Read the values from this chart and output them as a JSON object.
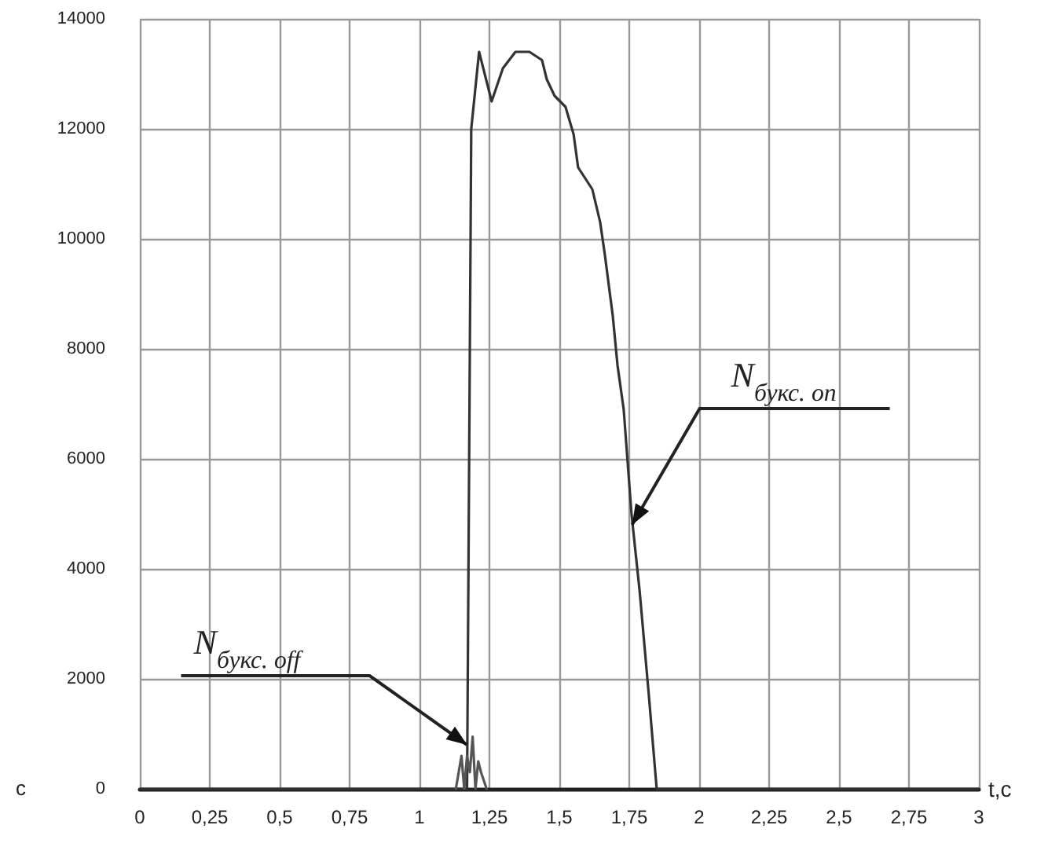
{
  "chart_data": {
    "type": "line",
    "xlabel": "t,c",
    "x": [
      0,
      1.17,
      1.185,
      1.213,
      1.258,
      1.298,
      1.343,
      1.393,
      1.438,
      1.455,
      1.483,
      1.522,
      1.551,
      1.567,
      1.618,
      1.646,
      1.663,
      1.691,
      1.708,
      1.73,
      1.758,
      1.787,
      1.82,
      1.848,
      3
    ],
    "series": [
      {
        "color": "#333333",
        "values": [
          0,
          0,
          12000,
          13400,
          12500,
          13100,
          13400,
          13400,
          13250,
          12900,
          12600,
          12400,
          11900,
          11300,
          10900,
          10300,
          9700,
          8600,
          7700,
          6900,
          5000,
          3600,
          1700,
          0,
          0
        ]
      },
      {
        "color": "#555555",
        "x": [
          1.13,
          1.15,
          1.16,
          1.17,
          1.18,
          1.19,
          1.2,
          1.21,
          1.22,
          1.24
        ],
        "values": [
          0,
          600,
          0,
          600,
          300,
          950,
          0,
          500,
          300,
          0
        ]
      }
    ],
    "xlim": [
      0,
      3
    ],
    "ylim": [
      0,
      14000
    ],
    "xticks": [
      0,
      {
        "value": 0.25,
        "label": "0,25"
      },
      {
        "value": 0.5,
        "label": "0,5"
      },
      {
        "value": 0.75,
        "label": "0,75"
      },
      1,
      {
        "value": 1.25,
        "label": "1,25"
      },
      {
        "value": 1.5,
        "label": "1,5"
      },
      {
        "value": 1.75,
        "label": "1,75"
      },
      2,
      {
        "value": 2.25,
        "label": "2,25"
      },
      {
        "value": 2.5,
        "label": "2,5"
      },
      {
        "value": 2.75,
        "label": "2,75"
      },
      3
    ],
    "yticks": [
      0,
      2000,
      4000,
      6000,
      8000,
      10000,
      12000,
      14000
    ],
    "grid": true,
    "marker": "none",
    "line_style": "solid",
    "annotations": [
      {
        "text": "N$_{букс. off}$",
        "x": 1.17,
        "y": 800
      },
      {
        "text": "N$_{букс. on}$",
        "x": 1.76,
        "y": 4800
      },
      "c"
    ]
  }
}
